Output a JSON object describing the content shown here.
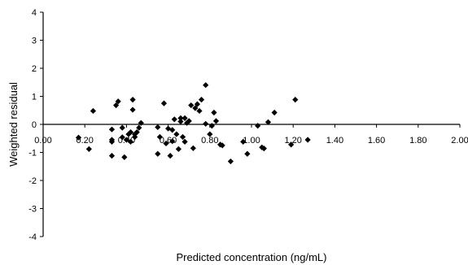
{
  "chart_data": {
    "type": "scatter",
    "xlabel": "Predicted concentration (ng/mL)",
    "ylabel": "Weighted residual",
    "xlim": [
      0,
      2
    ],
    "ylim": [
      -4,
      4
    ],
    "x_ticks": [
      "0.00",
      "0.20",
      "0.40",
      "0.60",
      "0.80",
      "1.00",
      "1.20",
      "1.40",
      "1.60",
      "1.80",
      "2.00"
    ],
    "y_ticks": [
      "4",
      "3",
      "2",
      "1",
      "0",
      "-1",
      "-2",
      "-3",
      "-4"
    ],
    "grid": false,
    "legend": "none",
    "marker": "diamond",
    "marker_color": "#000000",
    "points": [
      {
        "x": 0.17,
        "y": -0.47
      },
      {
        "x": 0.22,
        "y": -0.88
      },
      {
        "x": 0.24,
        "y": 0.48
      },
      {
        "x": 0.33,
        "y": -0.18
      },
      {
        "x": 0.33,
        "y": -0.55
      },
      {
        "x": 0.33,
        "y": -0.62
      },
      {
        "x": 0.33,
        "y": -1.12
      },
      {
        "x": 0.35,
        "y": 0.68
      },
      {
        "x": 0.36,
        "y": 0.82
      },
      {
        "x": 0.38,
        "y": -0.12
      },
      {
        "x": 0.38,
        "y": -0.46
      },
      {
        "x": 0.39,
        "y": -1.17
      },
      {
        "x": 0.4,
        "y": -0.55
      },
      {
        "x": 0.41,
        "y": -0.35
      },
      {
        "x": 0.42,
        "y": -0.28
      },
      {
        "x": 0.42,
        "y": -0.62
      },
      {
        "x": 0.43,
        "y": 0.52
      },
      {
        "x": 0.43,
        "y": 0.88
      },
      {
        "x": 0.44,
        "y": -0.35
      },
      {
        "x": 0.44,
        "y": -0.45
      },
      {
        "x": 0.45,
        "y": -0.28
      },
      {
        "x": 0.46,
        "y": -0.12
      },
      {
        "x": 0.47,
        "y": 0.05
      },
      {
        "x": 0.55,
        "y": -0.1
      },
      {
        "x": 0.55,
        "y": -1.05
      },
      {
        "x": 0.56,
        "y": -0.45
      },
      {
        "x": 0.58,
        "y": 0.75
      },
      {
        "x": 0.59,
        "y": -0.68
      },
      {
        "x": 0.6,
        "y": -0.15
      },
      {
        "x": 0.61,
        "y": -1.12
      },
      {
        "x": 0.62,
        "y": -0.6
      },
      {
        "x": 0.62,
        "y": -0.2
      },
      {
        "x": 0.63,
        "y": 0.18
      },
      {
        "x": 0.64,
        "y": -0.35
      },
      {
        "x": 0.65,
        "y": -0.88
      },
      {
        "x": 0.66,
        "y": 0.22
      },
      {
        "x": 0.66,
        "y": 0.1
      },
      {
        "x": 0.67,
        "y": -0.45
      },
      {
        "x": 0.68,
        "y": -0.62
      },
      {
        "x": 0.68,
        "y": 0.22
      },
      {
        "x": 0.69,
        "y": 0.05
      },
      {
        "x": 0.7,
        "y": 0.12
      },
      {
        "x": 0.71,
        "y": 0.68
      },
      {
        "x": 0.72,
        "y": -0.85
      },
      {
        "x": 0.73,
        "y": 0.58
      },
      {
        "x": 0.74,
        "y": 0.72
      },
      {
        "x": 0.75,
        "y": 0.48
      },
      {
        "x": 0.76,
        "y": 0.88
      },
      {
        "x": 0.78,
        "y": 1.4
      },
      {
        "x": 0.78,
        "y": 0.02
      },
      {
        "x": 0.8,
        "y": -0.35
      },
      {
        "x": 0.81,
        "y": -0.05
      },
      {
        "x": 0.82,
        "y": 0.42
      },
      {
        "x": 0.83,
        "y": 0.12
      },
      {
        "x": 0.85,
        "y": -0.72
      },
      {
        "x": 0.86,
        "y": -0.75
      },
      {
        "x": 0.9,
        "y": -1.32
      },
      {
        "x": 0.96,
        "y": -0.62
      },
      {
        "x": 0.98,
        "y": -1.05
      },
      {
        "x": 1.03,
        "y": -0.05
      },
      {
        "x": 1.05,
        "y": -0.82
      },
      {
        "x": 1.06,
        "y": -0.86
      },
      {
        "x": 1.08,
        "y": 0.08
      },
      {
        "x": 1.11,
        "y": 0.42
      },
      {
        "x": 1.19,
        "y": -0.72
      },
      {
        "x": 1.21,
        "y": 0.88
      },
      {
        "x": 1.27,
        "y": -0.55
      }
    ]
  }
}
